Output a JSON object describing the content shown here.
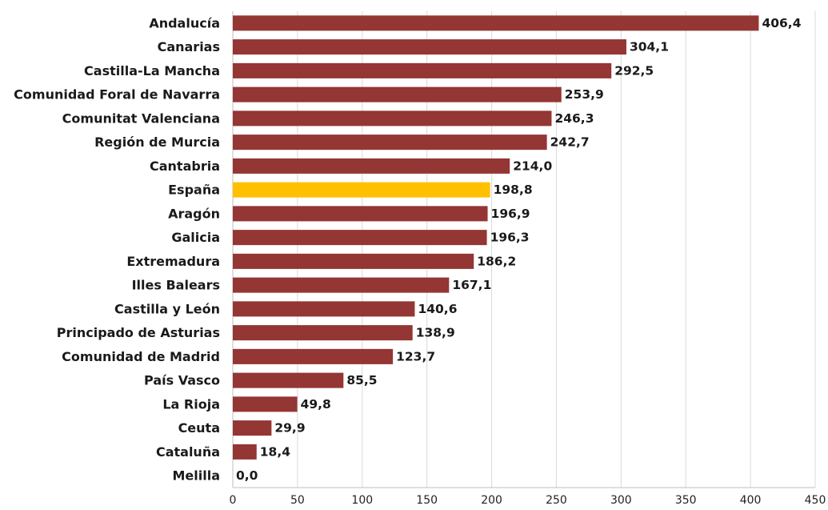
{
  "chart_data": {
    "type": "bar",
    "orientation": "horizontal",
    "title": "",
    "xlabel": "",
    "ylabel": "",
    "xlim": [
      0,
      450
    ],
    "x_ticks": [
      0,
      50,
      100,
      150,
      200,
      250,
      300,
      350,
      400,
      450
    ],
    "grid": true,
    "legend": "none",
    "decimal_separator": ",",
    "colors": {
      "bar": "#943634",
      "highlight": "#ffc000"
    },
    "highlight_category": "España",
    "categories": [
      "Andalucía",
      "Canarias",
      "Castilla-La Mancha",
      "Comunidad Foral de Navarra",
      "Comunitat Valenciana",
      "Región de Murcia",
      "Cantabria",
      "España",
      "Aragón",
      "Galicia",
      "Extremadura",
      "Illes Balears",
      "Castilla y León",
      "Principado de Asturias",
      "Comunidad de Madrid",
      "País Vasco",
      "La Rioja",
      "Ceuta",
      "Cataluña",
      "Melilla"
    ],
    "values": [
      406.4,
      304.1,
      292.5,
      253.9,
      246.3,
      242.7,
      214.0,
      198.8,
      196.9,
      196.3,
      186.2,
      167.1,
      140.6,
      138.9,
      123.7,
      85.5,
      49.8,
      29.9,
      18.4,
      0.0
    ],
    "value_labels": [
      "406,4",
      "304,1",
      "292,5",
      "253,9",
      "246,3",
      "242,7",
      "214,0",
      "198,8",
      "196,9",
      "196,3",
      "186,2",
      "167,1",
      "140,6",
      "138,9",
      "123,7",
      "85,5",
      "49,8",
      "29,9",
      "18,4",
      "0,0"
    ]
  }
}
